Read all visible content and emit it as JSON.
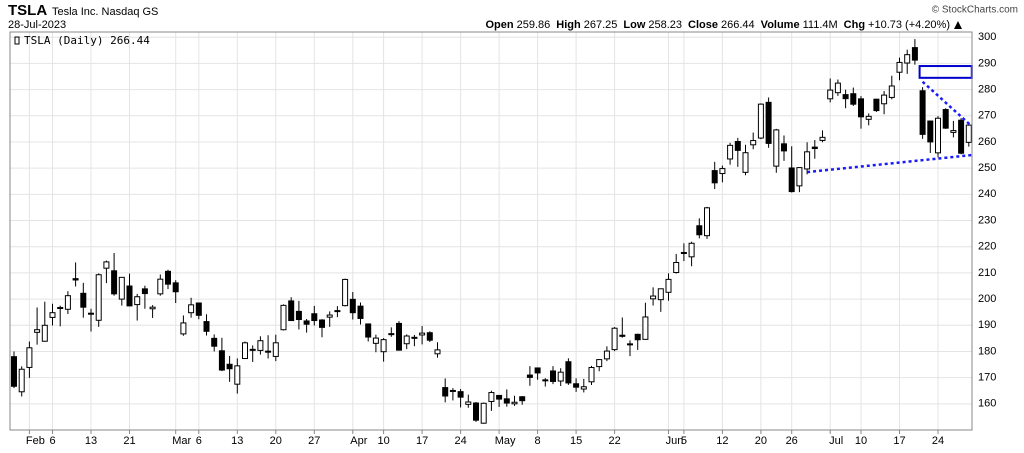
{
  "chart_data": {
    "type": "candlestick",
    "symbol": "TSLA",
    "company": "Tesla Inc. Nasdaq GS",
    "date": "28-Jul-2023",
    "source": "© StockCharts.com",
    "legend": "TSLA (Daily) 266.44",
    "quote": [
      {
        "label": "Open",
        "value": "259.86"
      },
      {
        "label": "High",
        "value": "267.25"
      },
      {
        "label": "Low",
        "value": "258.23"
      },
      {
        "label": "Close",
        "value": "266.44"
      },
      {
        "label": "Volume",
        "value": "111.4M"
      },
      {
        "label": "Chg",
        "value": "+10.73 (+4.20%)"
      }
    ],
    "up_color": "#ffffff",
    "down_color": "#000000",
    "line_color": "#000000",
    "grid": true,
    "x": [
      "2023-01-30",
      "2023-01-31",
      "2023-02-01",
      "2023-02-02",
      "2023-02-03",
      "2023-02-06",
      "2023-02-07",
      "2023-02-08",
      "2023-02-09",
      "2023-02-10",
      "2023-02-13",
      "2023-02-14",
      "2023-02-15",
      "2023-02-16",
      "2023-02-17",
      "2023-02-21",
      "2023-02-22",
      "2023-02-23",
      "2023-02-24",
      "2023-02-27",
      "2023-02-28",
      "2023-03-01",
      "2023-03-02",
      "2023-03-03",
      "2023-03-06",
      "2023-03-07",
      "2023-03-08",
      "2023-03-09",
      "2023-03-10",
      "2023-03-13",
      "2023-03-14",
      "2023-03-15",
      "2023-03-16",
      "2023-03-17",
      "2023-03-20",
      "2023-03-21",
      "2023-03-22",
      "2023-03-23",
      "2023-03-24",
      "2023-03-27",
      "2023-03-28",
      "2023-03-29",
      "2023-03-30",
      "2023-03-31",
      "2023-04-03",
      "2023-04-04",
      "2023-04-05",
      "2023-04-06",
      "2023-04-10",
      "2023-04-11",
      "2023-04-12",
      "2023-04-13",
      "2023-04-14",
      "2023-04-17",
      "2023-04-18",
      "2023-04-19",
      "2023-04-20",
      "2023-04-21",
      "2023-04-24",
      "2023-04-25",
      "2023-04-26",
      "2023-04-27",
      "2023-04-28",
      "2023-05-01",
      "2023-05-02",
      "2023-05-03",
      "2023-05-04",
      "2023-05-05",
      "2023-05-08",
      "2023-05-09",
      "2023-05-10",
      "2023-05-11",
      "2023-05-12",
      "2023-05-15",
      "2023-05-16",
      "2023-05-17",
      "2023-05-18",
      "2023-05-19",
      "2023-05-22",
      "2023-05-23",
      "2023-05-24",
      "2023-05-25",
      "2023-05-26",
      "2023-05-30",
      "2023-05-31",
      "2023-06-01",
      "2023-06-02",
      "2023-06-05",
      "2023-06-06",
      "2023-06-07",
      "2023-06-08",
      "2023-06-09",
      "2023-06-12",
      "2023-06-13",
      "2023-06-14",
      "2023-06-15",
      "2023-06-16",
      "2023-06-20",
      "2023-06-21",
      "2023-06-22",
      "2023-06-23",
      "2023-06-26",
      "2023-06-27",
      "2023-06-28",
      "2023-06-29",
      "2023-06-30",
      "2023-07-03",
      "2023-07-05",
      "2023-07-06",
      "2023-07-07",
      "2023-07-10",
      "2023-07-11",
      "2023-07-12",
      "2023-07-13",
      "2023-07-14",
      "2023-07-17",
      "2023-07-18",
      "2023-07-19",
      "2023-07-20",
      "2023-07-21",
      "2023-07-24",
      "2023-07-25",
      "2023-07-26",
      "2023-07-27",
      "2023-07-28"
    ],
    "open": [
      178,
      164.6,
      173.9,
      187.3,
      183.9,
      193,
      196.4,
      196.1,
      207.8,
      202.2,
      194.4,
      191.9,
      211.8,
      210.8,
      199.99,
      204.99,
      197.9,
      203.9,
      196.3,
      202,
      210.6,
      206.2,
      186.7,
      194.8,
      198.5,
      191.4,
      185,
      180.25,
      175.1,
      167.5,
      177.3,
      180.8,
      180.4,
      180.1,
      178.1,
      188.3,
      199.3,
      195.3,
      191.65,
      194.4,
      192,
      193.1,
      195.6,
      197.5,
      199.9,
      197.3,
      190.5,
      183.1,
      179.9,
      186.7,
      190.7,
      182.95,
      185.4,
      186.3,
      187.15,
      179.1,
      166.2,
      164.8,
      164.65,
      159.8,
      160.3,
      152.6,
      160.9,
      163.2,
      161.9,
      160,
      162.7,
      170.98,
      173.7,
      168.95,
      172.55,
      168.7,
      176.07,
      167.66,
      165.65,
      168.41,
      174.22,
      177.17,
      180.7,
      186.2,
      182.56,
      186.54,
      184.62,
      200.1,
      199.78,
      202.59,
      210.15,
      217.8,
      216.14,
      228,
      224.22,
      249.07,
      247.94,
      253.51,
      260.17,
      248.4,
      258.92,
      261.5,
      275.13,
      250.77,
      259.29,
      250.07,
      243.24,
      249.7,
      258.03,
      260.6,
      276.49,
      278.82,
      278.09,
      278.43,
      276.47,
      268.65,
      276.33,
      274.59,
      277.01,
      286.63,
      290.15,
      296.04,
      279.56,
      268,
      255.85,
      272.38,
      263.66,
      268.31,
      259.86
    ],
    "high": [
      180,
      174.3,
      183.8,
      196.8,
      199,
      198.2,
      197.5,
      203,
      214,
      206.2,
      196.3,
      209.8,
      214.7,
      217.6,
      208.4,
      209.7,
      201.99,
      205.1,
      197.7,
      209.4,
      211.2,
      207.2,
      193.75,
      200.5,
      198.6,
      194.2,
      186.5,
      185.2,
      178.3,
      177.35,
      183.8,
      182.3,
      185.8,
      186.2,
      186.4,
      198,
      200.7,
      199.3,
      192.4,
      197.4,
      192.35,
      195.3,
      197.3,
      207.8,
      202.7,
      198.7,
      190.7,
      186.4,
      185.1,
      189.2,
      191.6,
      186.5,
      186.3,
      189.7,
      187.7,
      183.5,
      169.7,
      166,
      165.65,
      163.5,
      160.7,
      160.5,
      165,
      163.3,
      165.5,
      163.1,
      162.95,
      174.4,
      173.8,
      169.8,
      174.4,
      173.6,
      177.38,
      169.76,
      169.52,
      174.5,
      177.06,
      181.95,
      189.32,
      192.96,
      184.22,
      186.78,
      198.6,
      204.48,
      203.95,
      209.8,
      217.25,
      221.29,
      221.91,
      230.83,
      235.23,
      252.42,
      250.97,
      259.68,
      261.57,
      258.95,
      263.6,
      274.75,
      276.99,
      265,
      262.45,
      258.37,
      250.39,
      259.88,
      260.74,
      264.45,
      284.25,
      283.85,
      279.97,
      280.78,
      277.52,
      270.9,
      276.52,
      279.45,
      285.3,
      292.23,
      295.26,
      299.29,
      280.93,
      268,
      269.85,
      272.9,
      268.04,
      269.13,
      267.25
    ],
    "low": [
      166,
      162.8,
      169.9,
      182.6,
      183.7,
      189.9,
      189.6,
      194.3,
      204.8,
      192.9,
      187.6,
      189.4,
      206.1,
      201.3,
      197.5,
      197.2,
      191.8,
      196.3,
      192.8,
      201.3,
      203.8,
      198.5,
      186,
      192.9,
      192.3,
      186.1,
      180,
      172.5,
      168.4,
      163.9,
      177.1,
      176,
      178.8,
      177.3,
      176.3,
      188,
      191.8,
      188.4,
      187.2,
      189.9,
      185.4,
      189.4,
      193.1,
      197.2,
      192.2,
      190.3,
      183.8,
      179.7,
      176.1,
      185.6,
      180.3,
      180.9,
      182,
      182.7,
      183.6,
      177.65,
      160.56,
      161.3,
      158.6,
      158.5,
      153.1,
      152.4,
      157.3,
      158.8,
      158.9,
      159.2,
      159.65,
      166.9,
      169.2,
      166.6,
      167.5,
      166.8,
      167.23,
      164.55,
      164.35,
      167.19,
      172.45,
      176.31,
      180.11,
      185.26,
      178.22,
      180.58,
      184.53,
      197.53,
      195.12,
      199.37,
      209.75,
      214.52,
      212.53,
      223.2,
      223.01,
      242.02,
      244.59,
      251.34,
      250.5,
      247.29,
      257.21,
      261.07,
      257.78,
      248.25,
      252.8,
      240.7,
      240.85,
      247.63,
      253.61,
      259.89,
      275.11,
      277.6,
      272.88,
      273.77,
      265.1,
      266.37,
      271.46,
      270.6,
      276.31,
      283.57,
      286.01,
      289.52,
      261.2,
      255.8,
      254.12,
      265,
      261.75,
      255.3,
      258.23
    ],
    "close": [
      166.7,
      173.2,
      181.4,
      188.3,
      189.98,
      194.8,
      196.8,
      201.3,
      207.3,
      196.9,
      194.6,
      209.3,
      214.2,
      202,
      208.3,
      197.4,
      200.9,
      202.1,
      196.9,
      207.6,
      205.7,
      202.8,
      190.9,
      197.8,
      193.8,
      187.7,
      182,
      172.9,
      173.4,
      174.5,
      183.3,
      180.45,
      184.1,
      180.1,
      183.3,
      197.6,
      191.8,
      192.2,
      190.4,
      191.8,
      189.2,
      193.9,
      195.3,
      207.5,
      194.8,
      192.6,
      185.5,
      185.1,
      184.5,
      186.8,
      180.5,
      185.9,
      185,
      187,
      184.3,
      180.6,
      162.99,
      165.1,
      162.55,
      160.7,
      153.75,
      160.2,
      164.3,
      161.8,
      160.3,
      160.6,
      161.2,
      170.1,
      171.8,
      169.15,
      168.54,
      172.08,
      167.98,
      166.35,
      166.52,
      173.86,
      176.89,
      180.14,
      188.87,
      185.77,
      182.9,
      184.47,
      193.17,
      201.16,
      203.93,
      207.52,
      213.97,
      217.61,
      221.31,
      224.57,
      234.86,
      244.4,
      249.83,
      258.71,
      256.79,
      255.9,
      260.54,
      274.45,
      259.46,
      264.61,
      256.6,
      241.05,
      250.21,
      256.24,
      257.5,
      261.77,
      279.82,
      282.48,
      276.54,
      274.43,
      269.61,
      269.79,
      271.99,
      277.9,
      281.38,
      290.38,
      293.34,
      291.26,
      262.9,
      260.02,
      269.06,
      265.28,
      264.35,
      255.71,
      266.44
    ],
    "ylim": [
      150,
      302
    ],
    "yticks": [
      160,
      170,
      180,
      190,
      200,
      210,
      220,
      230,
      240,
      250,
      260,
      270,
      280,
      290,
      300
    ],
    "xticks": [
      {
        "value": "2023-02-01",
        "label": "Feb"
      },
      {
        "value": "2023-02-06",
        "label": "6"
      },
      {
        "value": "2023-02-13",
        "label": "13"
      },
      {
        "value": "2023-02-21",
        "label": "21"
      },
      {
        "value": "2023-03-01",
        "label": "Mar"
      },
      {
        "value": "2023-03-06",
        "label": "6"
      },
      {
        "value": "2023-03-13",
        "label": "13"
      },
      {
        "value": "2023-03-20",
        "label": "20"
      },
      {
        "value": "2023-03-27",
        "label": "27"
      },
      {
        "value": "2023-04-03",
        "label": "Apr"
      },
      {
        "value": "2023-04-10",
        "label": "10"
      },
      {
        "value": "2023-04-17",
        "label": "17"
      },
      {
        "value": "2023-04-24",
        "label": "24"
      },
      {
        "value": "2023-05-01",
        "label": "May"
      },
      {
        "value": "2023-05-08",
        "label": "8"
      },
      {
        "value": "2023-05-15",
        "label": "15"
      },
      {
        "value": "2023-05-22",
        "label": "22"
      },
      {
        "value": "2023-06-01",
        "label": "Jun"
      },
      {
        "value": "2023-06-05",
        "label": "5"
      },
      {
        "value": "2023-06-12",
        "label": "12"
      },
      {
        "value": "2023-06-20",
        "label": "20"
      },
      {
        "value": "2023-06-26",
        "label": "26"
      },
      {
        "value": "2023-07-03",
        "label": "Jul"
      },
      {
        "value": "2023-07-10",
        "label": "10"
      },
      {
        "value": "2023-07-17",
        "label": "17"
      },
      {
        "value": "2023-07-24",
        "label": "24"
      }
    ],
    "drawings": [
      {
        "shape": "rect",
        "color": "#0000cc",
        "x": [
          "2023-07-20",
          "2023-07-28"
        ],
        "y": [
          284.5,
          289
        ]
      },
      {
        "shape": "dashed-line",
        "color": "#1a1aff",
        "x": [
          "2023-06-28",
          "2023-07-28"
        ],
        "y": [
          248.5,
          255
        ]
      },
      {
        "shape": "dashed-line",
        "color": "#1a1aff",
        "x": [
          "2023-07-20",
          "2023-07-28"
        ],
        "y": [
          283,
          266
        ]
      }
    ]
  }
}
